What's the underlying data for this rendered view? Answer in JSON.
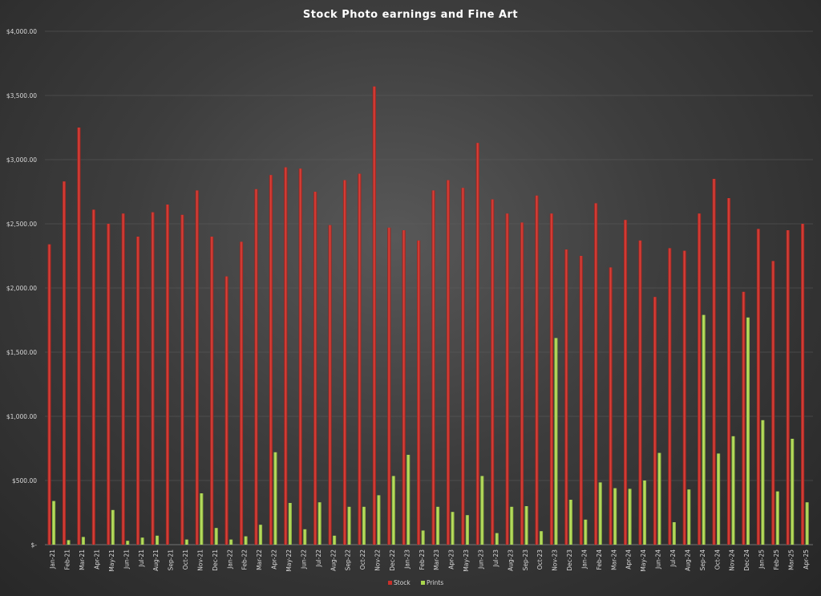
{
  "chart_data": {
    "type": "bar",
    "title": "Stock Photo earnings and Fine Art",
    "xlabel": "",
    "ylabel": "",
    "ylim": [
      0,
      4000
    ],
    "yticks": [
      {
        "value": 0,
        "label": "$-"
      },
      {
        "value": 500,
        "label": "$500.00"
      },
      {
        "value": 1000,
        "label": "$1,000.00"
      },
      {
        "value": 1500,
        "label": "$1,500.00"
      },
      {
        "value": 2000,
        "label": "$2,000.00"
      },
      {
        "value": 2500,
        "label": "$2,500.00"
      },
      {
        "value": 3000,
        "label": "$3,000.00"
      },
      {
        "value": 3500,
        "label": "$3,500.00"
      },
      {
        "value": 4000,
        "label": "$4,000.00"
      }
    ],
    "grid": true,
    "legend": "bottom",
    "categories": [
      "Jan-21",
      "Feb-21",
      "Mar-21",
      "Apr-21",
      "May-21",
      "Jun-21",
      "Jul-21",
      "Aug-21",
      "Sep-21",
      "Oct-21",
      "Nov-21",
      "Dec-21",
      "Jan-22",
      "Feb-22",
      "Mar-22",
      "Apr-22",
      "May-22",
      "Jun-22",
      "Jul-22",
      "Aug-22",
      "Sep-22",
      "Oct-22",
      "Nov-22",
      "Dec-22",
      "Jan-23",
      "Feb-23",
      "Mar-23",
      "Apr-23",
      "May-23",
      "Jun-23",
      "Jul-23",
      "Aug-23",
      "Sep-23",
      "Oct-23",
      "Nov-23",
      "Dec-23",
      "Jan-24",
      "Feb-24",
      "Mar-24",
      "Apr-24",
      "May-24",
      "Jun-24",
      "Jul-24",
      "Aug-24",
      "Sep-24",
      "Oct-24",
      "Nov-24",
      "Dec-24",
      "Jan-25",
      "Feb-25",
      "Mar-25",
      "Apr-25"
    ],
    "series": [
      {
        "name": "Stock",
        "color": "#c9302a",
        "values": [
          2340,
          2830,
          3250,
          2610,
          2500,
          2580,
          2400,
          2590,
          2650,
          2570,
          2760,
          2400,
          2090,
          2360,
          2770,
          2880,
          2940,
          2930,
          2750,
          2490,
          2840,
          2890,
          3570,
          2470,
          2450,
          2370,
          2760,
          2840,
          2780,
          3130,
          2690,
          2580,
          2510,
          2720,
          2580,
          2300,
          2250,
          2660,
          2160,
          2530,
          2370,
          1930,
          2310,
          2290,
          2580,
          2850,
          2700,
          1970,
          2460,
          2210,
          2450,
          2500
        ]
      },
      {
        "name": "Prints",
        "color": "#a9d54d",
        "values": [
          340,
          35,
          60,
          0,
          270,
          30,
          55,
          70,
          0,
          40,
          400,
          130,
          40,
          65,
          155,
          720,
          325,
          120,
          330,
          70,
          295,
          295,
          385,
          535,
          700,
          110,
          295,
          255,
          230,
          535,
          90,
          295,
          300,
          105,
          1610,
          350,
          195,
          485,
          440,
          435,
          500,
          715,
          175,
          430,
          1790,
          710,
          845,
          1770,
          970,
          415,
          825,
          330
        ]
      }
    ]
  }
}
